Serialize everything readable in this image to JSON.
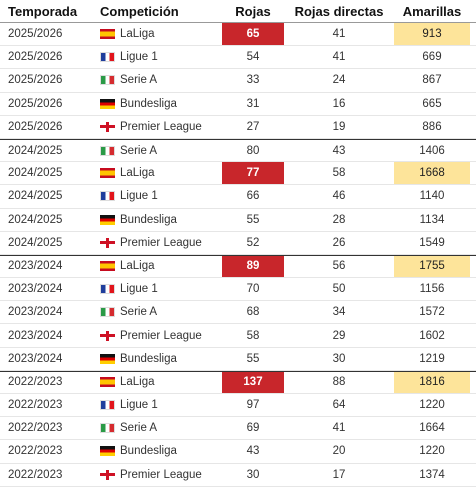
{
  "headers": {
    "season": "Temporada",
    "competition": "Competición",
    "reds": "Rojas",
    "direct_reds": "Rojas directas",
    "yellows": "Amarillas"
  },
  "rows": [
    {
      "season": "2025/2026",
      "competition": "LaLiga",
      "flag": "es",
      "reds": "65",
      "direct": "41",
      "yellows": "913",
      "hi": true
    },
    {
      "season": "2025/2026",
      "competition": "Ligue 1",
      "flag": "fr",
      "reds": "54",
      "direct": "41",
      "yellows": "669",
      "hi": false
    },
    {
      "season": "2025/2026",
      "competition": "Serie A",
      "flag": "it",
      "reds": "33",
      "direct": "24",
      "yellows": "867",
      "hi": false
    },
    {
      "season": "2025/2026",
      "competition": "Bundesliga",
      "flag": "de",
      "reds": "31",
      "direct": "16",
      "yellows": "665",
      "hi": false
    },
    {
      "season": "2025/2026",
      "competition": "Premier League",
      "flag": "en",
      "reds": "27",
      "direct": "19",
      "yellows": "886",
      "hi": false
    },
    {
      "season": "2024/2025",
      "competition": "Serie A",
      "flag": "it",
      "reds": "80",
      "direct": "43",
      "yellows": "1406",
      "hi": false
    },
    {
      "season": "2024/2025",
      "competition": "LaLiga",
      "flag": "es",
      "reds": "77",
      "direct": "58",
      "yellows": "1668",
      "hi": true
    },
    {
      "season": "2024/2025",
      "competition": "Ligue 1",
      "flag": "fr",
      "reds": "66",
      "direct": "46",
      "yellows": "1140",
      "hi": false
    },
    {
      "season": "2024/2025",
      "competition": "Bundesliga",
      "flag": "de",
      "reds": "55",
      "direct": "28",
      "yellows": "1134",
      "hi": false
    },
    {
      "season": "2024/2025",
      "competition": "Premier League",
      "flag": "en",
      "reds": "52",
      "direct": "26",
      "yellows": "1549",
      "hi": false
    },
    {
      "season": "2023/2024",
      "competition": "LaLiga",
      "flag": "es",
      "reds": "89",
      "direct": "56",
      "yellows": "1755",
      "hi": true
    },
    {
      "season": "2023/2024",
      "competition": "Ligue 1",
      "flag": "fr",
      "reds": "70",
      "direct": "50",
      "yellows": "1156",
      "hi": false
    },
    {
      "season": "2023/2024",
      "competition": "Serie A",
      "flag": "it",
      "reds": "68",
      "direct": "34",
      "yellows": "1572",
      "hi": false
    },
    {
      "season": "2023/2024",
      "competition": "Premier League",
      "flag": "en",
      "reds": "58",
      "direct": "29",
      "yellows": "1602",
      "hi": false
    },
    {
      "season": "2023/2024",
      "competition": "Bundesliga",
      "flag": "de",
      "reds": "55",
      "direct": "30",
      "yellows": "1219",
      "hi": false
    },
    {
      "season": "2022/2023",
      "competition": "LaLiga",
      "flag": "es",
      "reds": "137",
      "direct": "88",
      "yellows": "1816",
      "hi": true
    },
    {
      "season": "2022/2023",
      "competition": "Ligue 1",
      "flag": "fr",
      "reds": "97",
      "direct": "64",
      "yellows": "1220",
      "hi": false
    },
    {
      "season": "2022/2023",
      "competition": "Serie A",
      "flag": "it",
      "reds": "69",
      "direct": "41",
      "yellows": "1664",
      "hi": false
    },
    {
      "season": "2022/2023",
      "competition": "Bundesliga",
      "flag": "de",
      "reds": "43",
      "direct": "20",
      "yellows": "1220",
      "hi": false
    },
    {
      "season": "2022/2023",
      "competition": "Premier League",
      "flag": "en",
      "reds": "30",
      "direct": "17",
      "yellows": "1374",
      "hi": false
    }
  ],
  "colors": {
    "highlight_red": "#c8262b",
    "highlight_yellow": "#fde49a"
  },
  "flag_icons": {
    "es": "spain-flag-icon",
    "fr": "france-flag-icon",
    "it": "italy-flag-icon",
    "de": "germany-flag-icon",
    "en": "england-flag-icon"
  }
}
